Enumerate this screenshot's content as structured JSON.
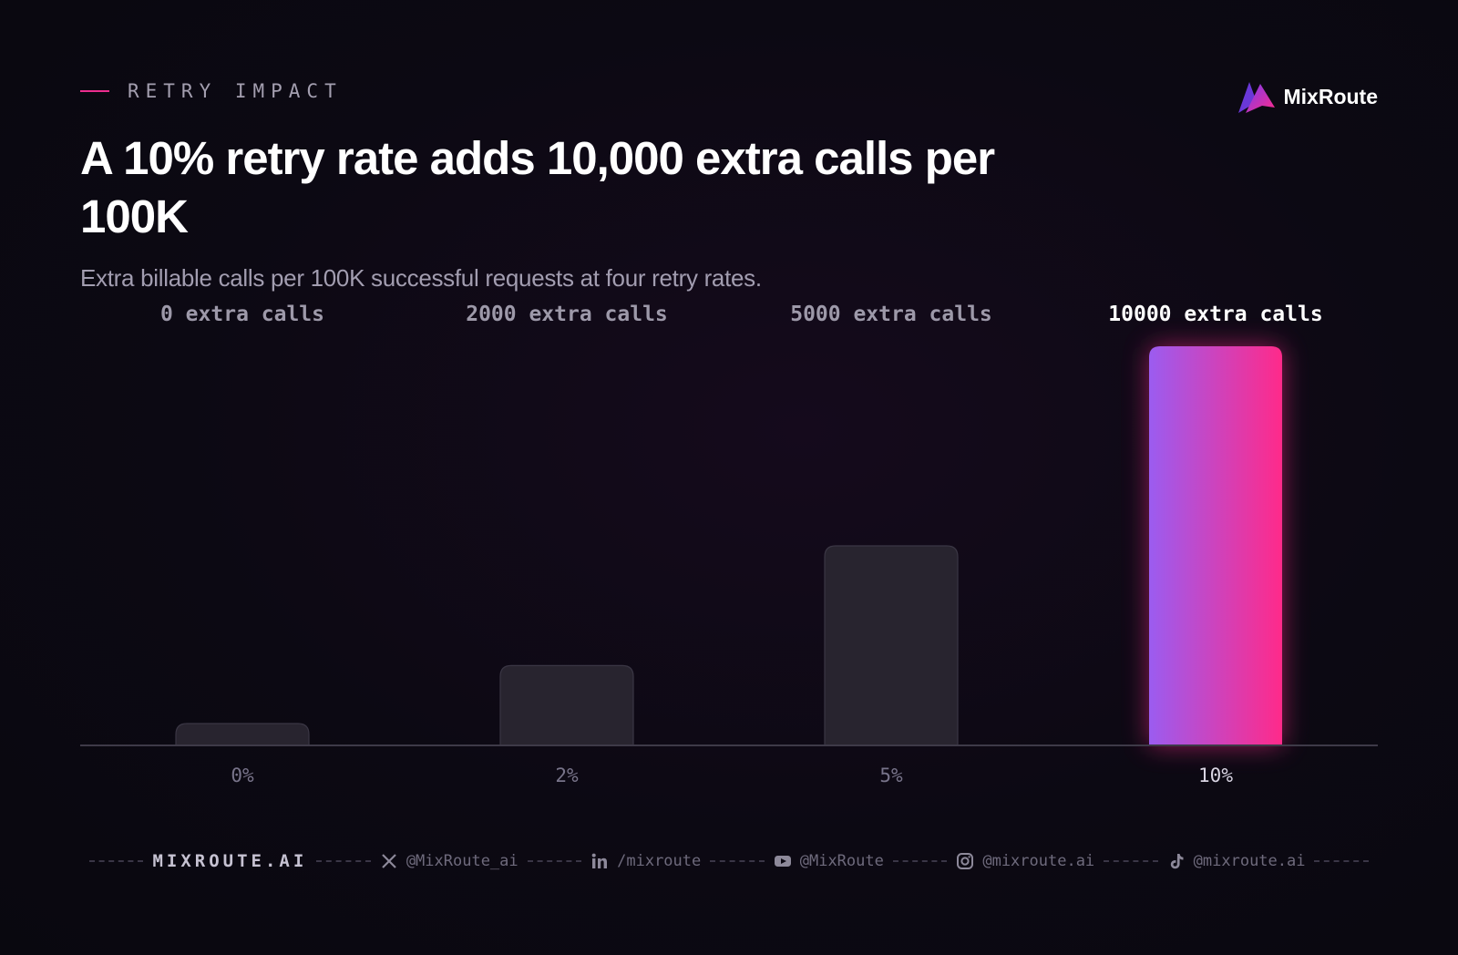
{
  "header": {
    "eyebrow": "RETRY IMPACT",
    "title": "A 10% retry rate adds 10,000 extra calls per 100K",
    "subtitle": "Extra billable calls per 100K successful requests at four retry rates."
  },
  "brand": {
    "name": "MixRoute"
  },
  "colors": {
    "accent_start": "#9b5cf0",
    "accent_end": "#ff2a8a",
    "muted_bar": "#28242f",
    "background": "#0c0913"
  },
  "chart_data": {
    "type": "bar",
    "categories": [
      "0%",
      "2%",
      "5%",
      "10%"
    ],
    "values": [
      0,
      2000,
      5000,
      10000
    ],
    "value_labels": [
      "0 extra calls",
      "2000 extra calls",
      "5000 extra calls",
      "10000 extra calls"
    ],
    "highlight_index": 3,
    "ylim": [
      0,
      10000
    ],
    "grid": false,
    "legend": "none"
  },
  "footer": {
    "brand": "MIXROUTE.AI",
    "socials": [
      {
        "icon": "x-icon",
        "handle": "@MixRoute_ai"
      },
      {
        "icon": "linkedin-icon",
        "handle": "/mixroute"
      },
      {
        "icon": "youtube-icon",
        "handle": "@MixRoute"
      },
      {
        "icon": "instagram-icon",
        "handle": "@mixroute.ai"
      },
      {
        "icon": "tiktok-icon",
        "handle": "@mixroute.ai"
      }
    ]
  }
}
